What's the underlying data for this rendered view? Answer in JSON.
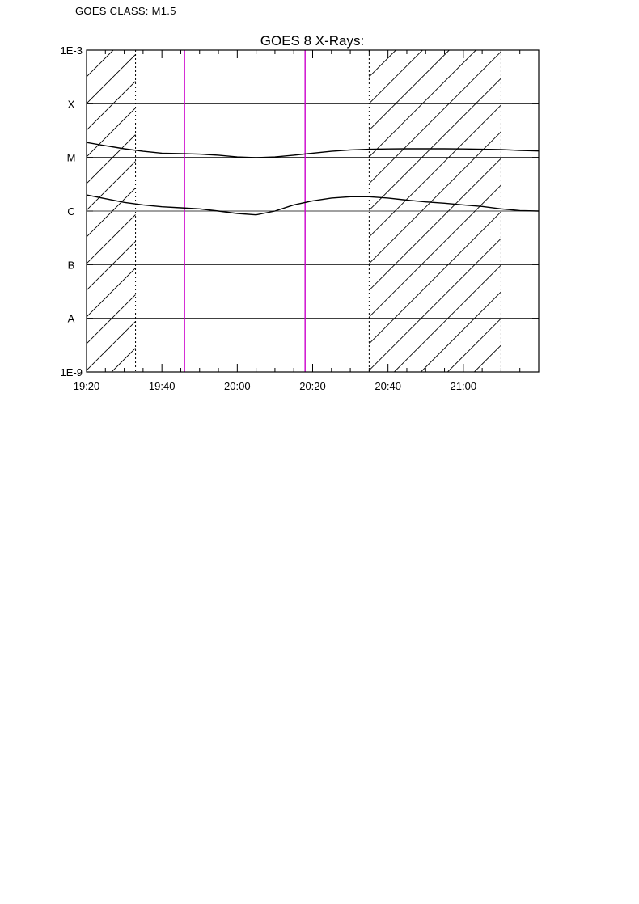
{
  "header": {
    "goes_class": "GOES CLASS: M1.5"
  },
  "chart_data": {
    "type": "line",
    "title": "GOES 8 X-Rays:",
    "xlabel": "",
    "ylabel": "",
    "y_scale": "log",
    "x_range": [
      "19:20",
      "21:20"
    ],
    "ylim": [
      1e-09,
      0.001
    ],
    "x_ticks": [
      "19:20",
      "19:40",
      "20:00",
      "20:20",
      "20:40",
      "21:00"
    ],
    "y_ticks": [
      {
        "value": 0.001,
        "label": "1E-3"
      },
      {
        "value": 0.0001,
        "label": "X"
      },
      {
        "value": 1e-05,
        "label": "M"
      },
      {
        "value": 1e-06,
        "label": "C"
      },
      {
        "value": 1e-07,
        "label": "B"
      },
      {
        "value": 1e-08,
        "label": "A"
      },
      {
        "value": 1e-09,
        "label": "1E-9"
      }
    ],
    "grid": "horizontal at class levels",
    "shaded_intervals": [
      {
        "start": "19:20",
        "end": "19:33"
      },
      {
        "start": "20:35",
        "end": "21:10"
      }
    ],
    "marker_lines": [
      {
        "time": "19:46",
        "color": "#cc00cc"
      },
      {
        "time": "20:18",
        "color": "#cc00cc"
      }
    ],
    "series": [
      {
        "points": [
          [
            "19:20",
            1.9e-05
          ],
          [
            "19:25",
            1.65e-05
          ],
          [
            "19:30",
            1.45e-05
          ],
          [
            "19:35",
            1.3e-05
          ],
          [
            "19:40",
            1.2e-05
          ],
          [
            "19:45",
            1.18e-05
          ],
          [
            "19:50",
            1.15e-05
          ],
          [
            "19:55",
            1.1e-05
          ],
          [
            "20:00",
            1.02e-05
          ],
          [
            "20:05",
            9.9e-06
          ],
          [
            "20:10",
            1.02e-05
          ],
          [
            "20:15",
            1.1e-05
          ],
          [
            "20:20",
            1.2e-05
          ],
          [
            "20:25",
            1.3e-05
          ],
          [
            "20:30",
            1.38e-05
          ],
          [
            "20:35",
            1.42e-05
          ],
          [
            "20:40",
            1.44e-05
          ],
          [
            "20:45",
            1.45e-05
          ],
          [
            "20:50",
            1.45e-05
          ],
          [
            "20:55",
            1.45e-05
          ],
          [
            "21:00",
            1.44e-05
          ],
          [
            "21:05",
            1.42e-05
          ],
          [
            "21:10",
            1.4e-05
          ],
          [
            "21:15",
            1.35e-05
          ],
          [
            "21:20",
            1.32e-05
          ]
        ]
      },
      {
        "points": [
          [
            "19:20",
            2e-06
          ],
          [
            "19:25",
            1.7e-06
          ],
          [
            "19:30",
            1.45e-06
          ],
          [
            "19:35",
            1.3e-06
          ],
          [
            "19:40",
            1.2e-06
          ],
          [
            "19:45",
            1.15e-06
          ],
          [
            "19:50",
            1.1e-06
          ],
          [
            "19:55",
            1e-06
          ],
          [
            "20:00",
            9e-07
          ],
          [
            "20:05",
            8.5e-07
          ],
          [
            "20:10",
            1e-06
          ],
          [
            "20:15",
            1.3e-06
          ],
          [
            "20:20",
            1.55e-06
          ],
          [
            "20:25",
            1.75e-06
          ],
          [
            "20:30",
            1.85e-06
          ],
          [
            "20:35",
            1.85e-06
          ],
          [
            "20:40",
            1.75e-06
          ],
          [
            "20:45",
            1.6e-06
          ],
          [
            "20:50",
            1.48e-06
          ],
          [
            "20:55",
            1.4e-06
          ],
          [
            "21:00",
            1.3e-06
          ],
          [
            "21:05",
            1.22e-06
          ],
          [
            "21:10",
            1.1e-06
          ],
          [
            "21:15",
            1.02e-06
          ],
          [
            "21:20",
            1e-06
          ]
        ]
      }
    ]
  }
}
